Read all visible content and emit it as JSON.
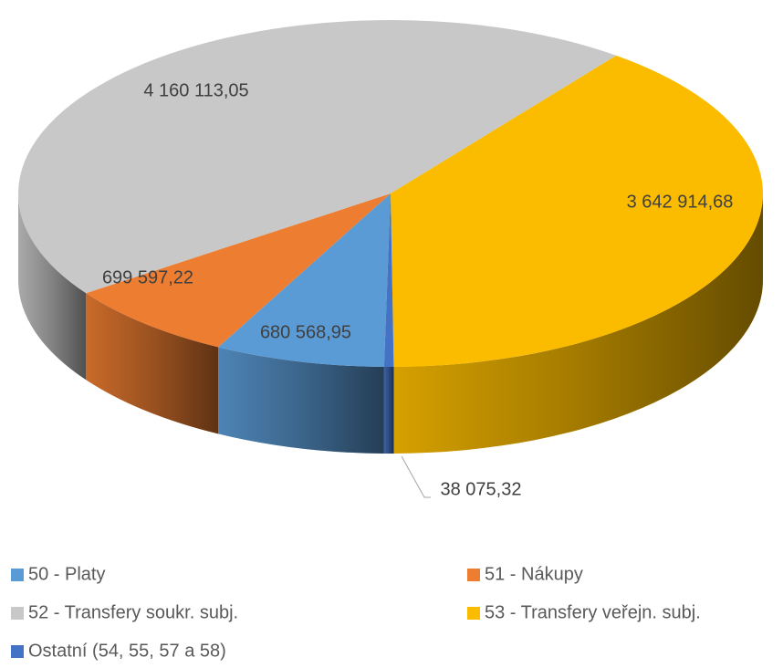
{
  "chart_data": {
    "type": "pie3d",
    "categories": [
      "50 - Platy",
      "51 - Nákupy",
      "52 - Transfery soukr. subj.",
      "53 - Transfery veřejn. subj.",
      "Ostatní (54, 55, 57 a 58)"
    ],
    "values": [
      680568.95,
      699597.22,
      4160113.05,
      3642914.68,
      38075.32
    ],
    "value_labels": [
      "680 568,95",
      "699 597,22",
      "4 160 113,05",
      "3 642 914,68",
      "38 075,32"
    ],
    "colors": [
      "#5b9bd5",
      "#ed7d31",
      "#c8c8c8",
      "#fbbc00",
      "#4472c4"
    ],
    "legend": "bottom"
  }
}
